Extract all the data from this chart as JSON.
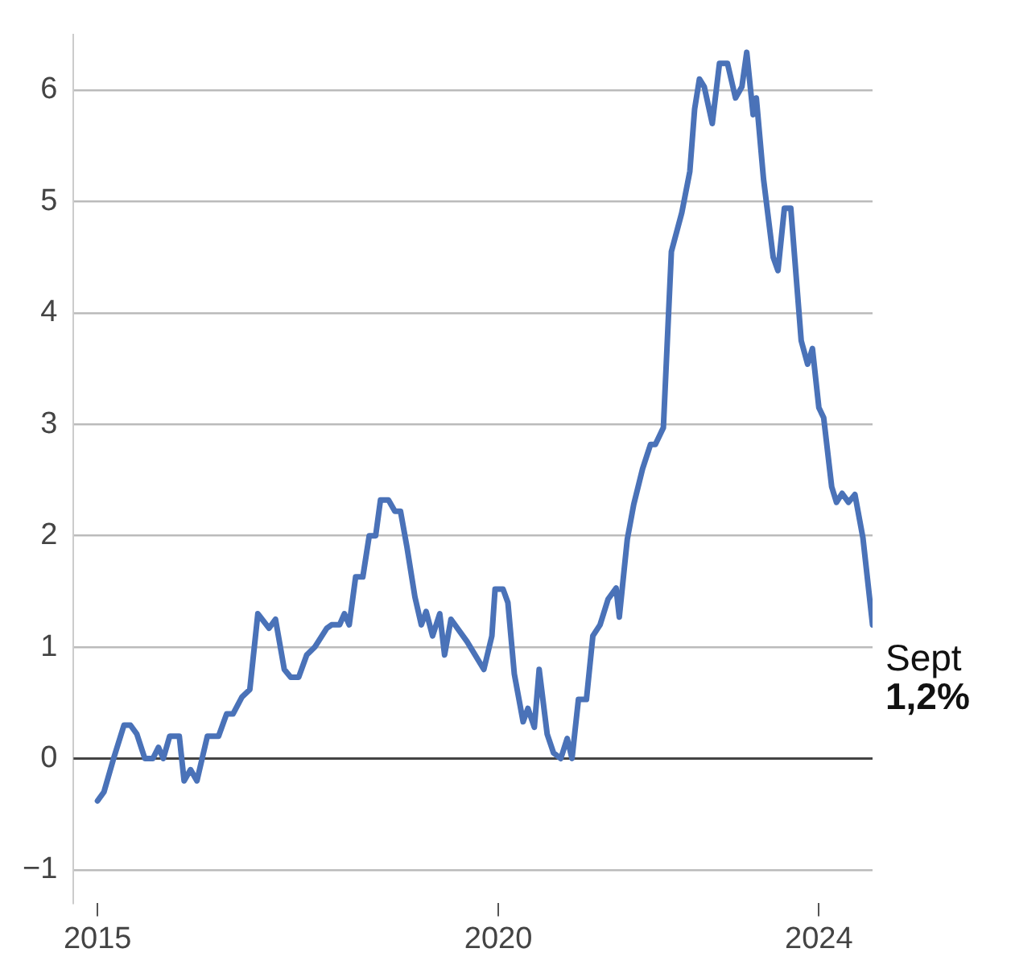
{
  "chart_data": {
    "type": "line",
    "x": [
      2015.0,
      2015.08,
      2015.2,
      2015.33,
      2015.41,
      2015.49,
      2015.59,
      2015.69,
      2015.76,
      2015.82,
      2015.9,
      2016.02,
      2016.08,
      2016.16,
      2016.24,
      2016.37,
      2016.51,
      2016.61,
      2016.69,
      2016.8,
      2016.9,
      2017.0,
      2017.14,
      2017.22,
      2017.33,
      2017.41,
      2017.51,
      2017.61,
      2017.71,
      2017.86,
      2017.92,
      2018.02,
      2018.08,
      2018.14,
      2018.22,
      2018.31,
      2018.39,
      2018.47,
      2018.53,
      2018.63,
      2018.71,
      2018.78,
      2018.86,
      2018.96,
      2019.04,
      2019.1,
      2019.18,
      2019.27,
      2019.33,
      2019.41,
      2019.61,
      2019.82,
      2019.92,
      2019.96,
      2020.06,
      2020.12,
      2020.2,
      2020.31,
      2020.37,
      2020.45,
      2020.51,
      2020.61,
      2020.69,
      2020.78,
      2020.86,
      2020.92,
      2021.0,
      2021.1,
      2021.18,
      2021.27,
      2021.37,
      2021.47,
      2021.51,
      2021.61,
      2021.69,
      2021.8,
      2021.9,
      2021.96,
      2022.06,
      2022.16,
      2022.29,
      2022.39,
      2022.45,
      2022.51,
      2022.57,
      2022.67,
      2022.76,
      2022.86,
      2022.96,
      2023.04,
      2023.1,
      2023.18,
      2023.22,
      2023.31,
      2023.43,
      2023.49,
      2023.57,
      2023.65,
      2023.78,
      2023.86,
      2023.92,
      2024.0,
      2024.06,
      2024.16,
      2024.22,
      2024.29,
      2024.37,
      2024.45,
      2024.55,
      2024.67
    ],
    "series": [
      {
        "color": "#4a72b8",
        "values": [
          -0.38,
          -0.3,
          0,
          0.3,
          0.3,
          0.22,
          0,
          0,
          0.1,
          0,
          0.2,
          0.2,
          -0.2,
          -0.1,
          -0.2,
          0.2,
          0.2,
          0.4,
          0.4,
          0.55,
          0.62,
          1.3,
          1.17,
          1.25,
          0.8,
          0.73,
          0.73,
          0.93,
          1.0,
          1.17,
          1.2,
          1.2,
          1.3,
          1.2,
          1.63,
          1.63,
          2.0,
          2.0,
          2.32,
          2.32,
          2.22,
          2.22,
          1.9,
          1.45,
          1.2,
          1.32,
          1.1,
          1.3,
          0.93,
          1.25,
          1.05,
          0.8,
          1.1,
          1.52,
          1.52,
          1.4,
          0.76,
          0.33,
          0.45,
          0.28,
          0.8,
          0.22,
          0.05,
          0,
          0.18,
          0,
          0.53,
          0.53,
          1.1,
          1.2,
          1.43,
          1.53,
          1.27,
          1.97,
          2.28,
          2.6,
          2.82,
          2.82,
          2.97,
          4.55,
          4.9,
          5.27,
          5.83,
          6.1,
          6.03,
          5.7,
          6.24,
          6.24,
          5.93,
          6.03,
          6.34,
          5.78,
          5.93,
          5.2,
          4.5,
          4.38,
          4.94,
          4.94,
          3.75,
          3.54,
          3.68,
          3.15,
          3.06,
          2.44,
          2.3,
          2.38,
          2.3,
          2.37,
          1.98,
          1.2
        ]
      }
    ],
    "xlim": [
      2014.7,
      2024.67
    ],
    "xticks": [
      2015,
      2020,
      2024
    ],
    "ylim": [
      -1.3,
      6.5
    ],
    "yticks": [
      -1,
      0,
      1,
      2,
      3,
      4,
      5,
      6
    ],
    "grid": "y",
    "marker": "none",
    "line_style": "solid",
    "legend": false,
    "ref_lines": [
      {
        "axis": "y",
        "value": 0,
        "color": "#444444"
      }
    ],
    "annotations": [
      {
        "text": "Sept",
        "x": 2024.67,
        "y": 1.2
      },
      {
        "text": "1,2%",
        "x": 2024.67,
        "y": 1.2
      }
    ]
  }
}
